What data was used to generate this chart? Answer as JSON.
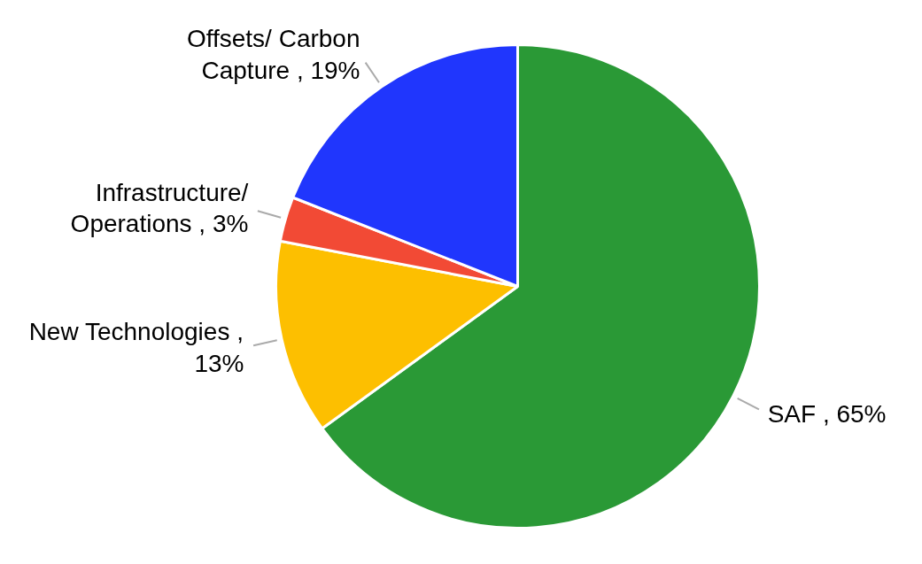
{
  "chart_data": {
    "type": "pie",
    "categories": [
      "SAF",
      "New Technologies",
      "Infrastructure/ Operations",
      "Offsets/ Carbon Capture"
    ],
    "values": [
      65,
      13,
      3,
      19
    ],
    "value_labels": [
      ", 65%",
      ", 13%",
      ", 3%",
      ", 19%"
    ],
    "colors": [
      "#2a9936",
      "#fdbf00",
      "#f24a35",
      "#2036fd"
    ]
  }
}
